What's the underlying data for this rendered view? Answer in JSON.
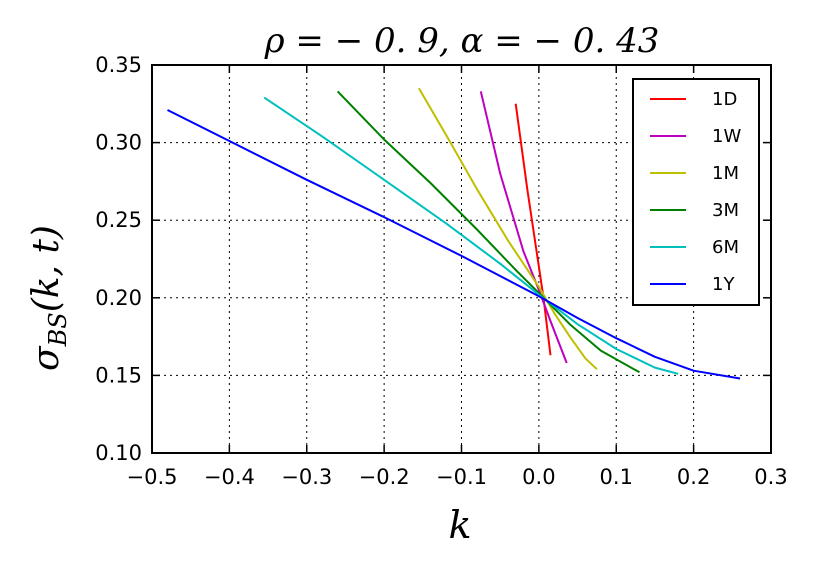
{
  "chart_data": {
    "type": "line",
    "title": "ρ = − 0. 9,    α = − 0. 43",
    "xlabel": "k",
    "ylabel": "σBS(k, t)",
    "ylabel_main": "σ",
    "ylabel_sub": "BS",
    "ylabel_rest": "(k, t)",
    "xlim": [
      -0.5,
      0.3
    ],
    "ylim": [
      0.1,
      0.35
    ],
    "xticks": [
      -0.5,
      -0.4,
      -0.3,
      -0.2,
      -0.1,
      0.0,
      0.1,
      0.2,
      0.3
    ],
    "xtick_labels": [
      "−0.5",
      "−0.4",
      "−0.3",
      "−0.2",
      "−0.1",
      "0.0",
      "0.1",
      "0.2",
      "0.3"
    ],
    "yticks": [
      0.1,
      0.15,
      0.2,
      0.25,
      0.3,
      0.35
    ],
    "ytick_labels": [
      "0.10",
      "0.15",
      "0.20",
      "0.25",
      "0.30",
      "0.35"
    ],
    "grid": true,
    "legend_position": "top-right",
    "series": [
      {
        "name": "1D",
        "color": "#ff0000",
        "points": [
          [
            -0.03,
            0.325
          ],
          [
            -0.015,
            0.27
          ],
          [
            0.0,
            0.22
          ],
          [
            0.006,
            0.2
          ],
          [
            0.015,
            0.163
          ]
        ]
      },
      {
        "name": "1W",
        "color": "#bf00bf",
        "points": [
          [
            -0.075,
            0.333
          ],
          [
            -0.05,
            0.28
          ],
          [
            -0.02,
            0.23
          ],
          [
            0.0,
            0.205
          ],
          [
            0.015,
            0.185
          ],
          [
            0.036,
            0.158
          ]
        ]
      },
      {
        "name": "1M",
        "color": "#bfbf00",
        "points": [
          [
            -0.155,
            0.335
          ],
          [
            -0.12,
            0.305
          ],
          [
            -0.08,
            0.27
          ],
          [
            -0.04,
            0.237
          ],
          [
            0.0,
            0.207
          ],
          [
            0.02,
            0.19
          ],
          [
            0.04,
            0.175
          ],
          [
            0.06,
            0.161
          ],
          [
            0.075,
            0.154
          ]
        ]
      },
      {
        "name": "3M",
        "color": "#008000",
        "points": [
          [
            -0.26,
            0.333
          ],
          [
            -0.2,
            0.302
          ],
          [
            -0.14,
            0.274
          ],
          [
            -0.08,
            0.244
          ],
          [
            -0.03,
            0.218
          ],
          [
            0.0,
            0.203
          ],
          [
            0.04,
            0.183
          ],
          [
            0.08,
            0.166
          ],
          [
            0.13,
            0.152
          ]
        ]
      },
      {
        "name": "6M",
        "color": "#00bfbf",
        "points": [
          [
            -0.355,
            0.329
          ],
          [
            -0.28,
            0.304
          ],
          [
            -0.2,
            0.276
          ],
          [
            -0.12,
            0.248
          ],
          [
            -0.05,
            0.222
          ],
          [
            0.0,
            0.202
          ],
          [
            0.05,
            0.183
          ],
          [
            0.1,
            0.167
          ],
          [
            0.15,
            0.155
          ],
          [
            0.18,
            0.151
          ]
        ]
      },
      {
        "name": "1Y",
        "color": "#0000ff",
        "points": [
          [
            -0.48,
            0.321
          ],
          [
            -0.4,
            0.301
          ],
          [
            -0.3,
            0.276
          ],
          [
            -0.2,
            0.252
          ],
          [
            -0.1,
            0.227
          ],
          [
            0.0,
            0.201
          ],
          [
            0.05,
            0.187
          ],
          [
            0.1,
            0.174
          ],
          [
            0.15,
            0.162
          ],
          [
            0.2,
            0.153
          ],
          [
            0.26,
            0.148
          ]
        ]
      }
    ]
  }
}
